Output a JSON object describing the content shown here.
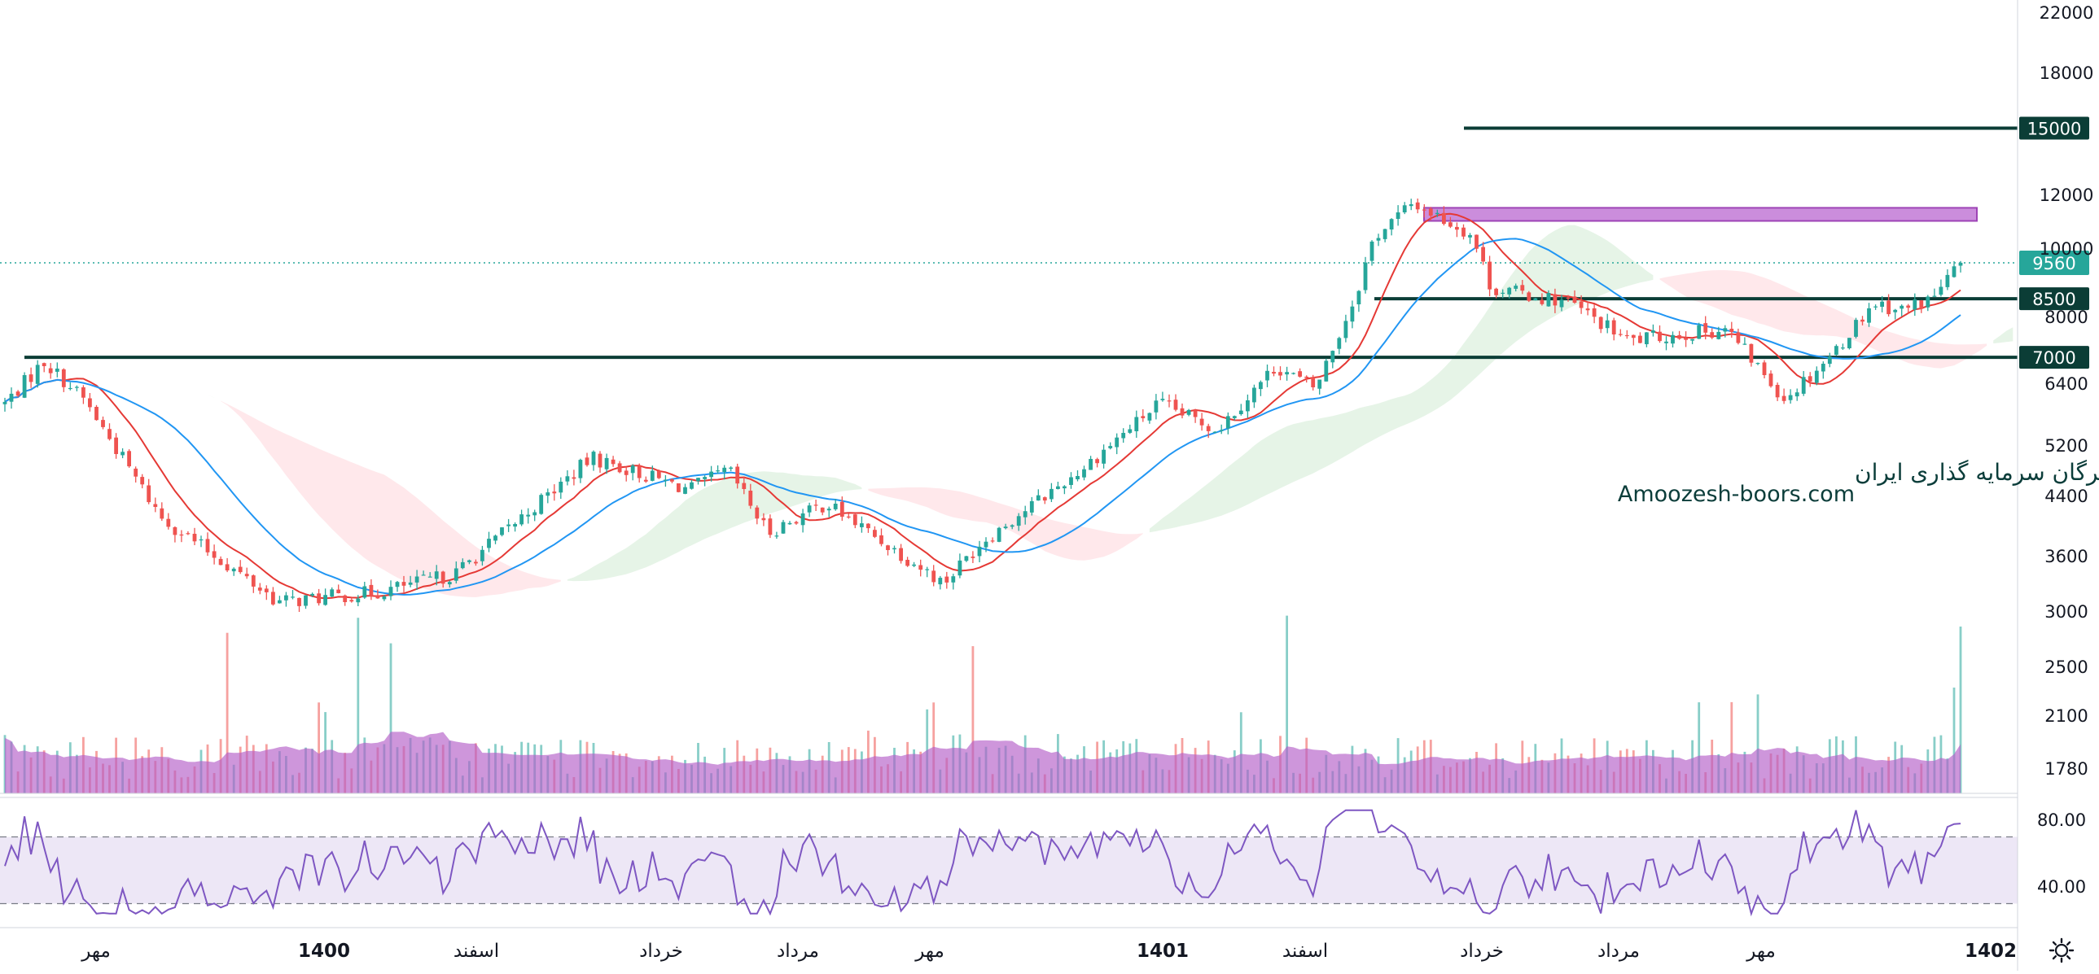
{
  "chart_data": {
    "type": "candlestick",
    "symbol_watermark": [
      "انجمن خبرگان سرمایه گذاری ایران",
      "Amoozesh-boors.com"
    ],
    "price_axis": {
      "scale": "log",
      "ticks": [
        22000,
        18000,
        12000,
        10000,
        8000,
        6400,
        5200,
        4400,
        3600,
        3000,
        2500,
        2100,
        1780
      ]
    },
    "time_axis_labels": [
      {
        "label": "مهر",
        "bold": false
      },
      {
        "label": "1400",
        "bold": true
      },
      {
        "label": "اسفند",
        "bold": false
      },
      {
        "label": "خرداد",
        "bold": false
      },
      {
        "label": "مرداد",
        "bold": false
      },
      {
        "label": "مهر",
        "bold": false
      },
      {
        "label": "1401",
        "bold": true
      },
      {
        "label": "اسفند",
        "bold": false
      },
      {
        "label": "خرداد",
        "bold": false
      },
      {
        "label": "مرداد",
        "bold": false
      },
      {
        "label": "مهر",
        "bold": false
      },
      {
        "label": "1402",
        "bold": true
      }
    ],
    "last_price": 9560,
    "horizontal_levels": [
      {
        "label": "15000",
        "value": 15000
      },
      {
        "label": "8500",
        "value": 8500
      },
      {
        "label": "7000",
        "value": 7000
      }
    ],
    "resistance_zone": {
      "low": 11000,
      "high": 11500
    },
    "price_path_keypoints": [
      [
        0,
        6000
      ],
      [
        0.02,
        6900
      ],
      [
        0.04,
        6100
      ],
      [
        0.08,
        4100
      ],
      [
        0.14,
        3100
      ],
      [
        0.19,
        3200
      ],
      [
        0.23,
        3400
      ],
      [
        0.3,
        5000
      ],
      [
        0.35,
        4500
      ],
      [
        0.37,
        4800
      ],
      [
        0.39,
        3900
      ],
      [
        0.42,
        4300
      ],
      [
        0.48,
        3300
      ],
      [
        0.5,
        3800
      ],
      [
        0.55,
        4800
      ],
      [
        0.59,
        6000
      ],
      [
        0.62,
        5500
      ],
      [
        0.65,
        6800
      ],
      [
        0.67,
        6300
      ],
      [
        0.69,
        8500
      ],
      [
        0.7,
        10400
      ],
      [
        0.72,
        11700
      ],
      [
        0.75,
        10500
      ],
      [
        0.76,
        8800
      ],
      [
        0.8,
        8400
      ],
      [
        0.83,
        7400
      ],
      [
        0.88,
        7700
      ],
      [
        0.91,
        6100
      ],
      [
        0.935,
        7100
      ],
      [
        0.955,
        8400
      ],
      [
        0.97,
        8200
      ],
      [
        0.985,
        8500
      ],
      [
        1.0,
        9560
      ]
    ],
    "indicators": [
      "SMA fast (red)",
      "SMA slow (blue)",
      "Ichimoku cloud",
      "Volume with MA",
      "RSI"
    ],
    "rsi": {
      "ticks": [
        80.0,
        40.0
      ],
      "bands": [
        70,
        30
      ],
      "last": 78
    }
  },
  "colors": {
    "up": "#26a69a",
    "down": "#ef5350",
    "sma_fast": "#e53935",
    "sma_slow": "#2196f3",
    "level_line": "#0b3d36",
    "zone_fill": "#c27ad6",
    "zone_border": "#8e24aa",
    "volume_ma": "#b45dc7",
    "rsi_line": "#7e57c2",
    "rsi_band": "#ede7f6",
    "last_price_badge": "#26a69a"
  },
  "icons": {
    "settings": "gear-icon"
  }
}
